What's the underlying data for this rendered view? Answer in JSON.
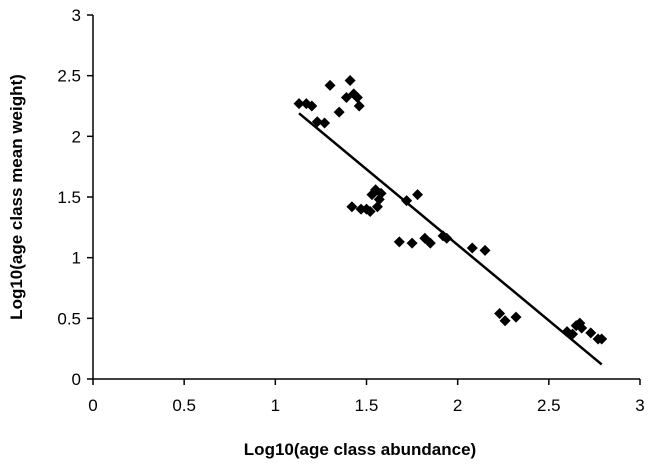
{
  "chart_data": {
    "type": "scatter",
    "xlabel": "Log10(age class abundance)",
    "ylabel": "Log10(age class mean weight)",
    "xlim": [
      0,
      3
    ],
    "ylim": [
      0,
      3
    ],
    "x_ticks": [
      "0",
      "0.5",
      "1",
      "1.5",
      "2",
      "2.5",
      "3"
    ],
    "y_ticks": [
      "0",
      "0.5",
      "1",
      "1.5",
      "2",
      "2.5",
      "3"
    ],
    "grid": false,
    "legend": "none",
    "marker": "diamond",
    "marker_color": "#000000",
    "series": [
      {
        "points": [
          [
            1.13,
            2.27
          ],
          [
            1.17,
            2.27
          ],
          [
            1.2,
            2.25
          ],
          [
            1.23,
            2.12
          ],
          [
            1.27,
            2.11
          ],
          [
            1.3,
            2.42
          ],
          [
            1.35,
            2.2
          ],
          [
            1.39,
            2.32
          ],
          [
            1.41,
            2.46
          ],
          [
            1.43,
            2.35
          ],
          [
            1.45,
            2.32
          ],
          [
            1.46,
            2.25
          ],
          [
            1.42,
            1.42
          ],
          [
            1.47,
            1.4
          ],
          [
            1.5,
            1.4
          ],
          [
            1.52,
            1.38
          ],
          [
            1.53,
            1.52
          ],
          [
            1.55,
            1.56
          ],
          [
            1.56,
            1.42
          ],
          [
            1.57,
            1.48
          ],
          [
            1.58,
            1.53
          ],
          [
            1.72,
            1.47
          ],
          [
            1.78,
            1.52
          ],
          [
            1.68,
            1.13
          ],
          [
            1.75,
            1.12
          ],
          [
            1.82,
            1.16
          ],
          [
            1.85,
            1.12
          ],
          [
            1.92,
            1.18
          ],
          [
            1.94,
            1.16
          ],
          [
            2.08,
            1.08
          ],
          [
            2.15,
            1.06
          ],
          [
            2.23,
            0.54
          ],
          [
            2.26,
            0.48
          ],
          [
            2.32,
            0.51
          ],
          [
            2.6,
            0.39
          ],
          [
            2.63,
            0.37
          ],
          [
            2.65,
            0.44
          ],
          [
            2.67,
            0.46
          ],
          [
            2.68,
            0.42
          ],
          [
            2.73,
            0.38
          ],
          [
            2.77,
            0.33
          ],
          [
            2.79,
            0.33
          ]
        ]
      }
    ],
    "trendline": {
      "x": [
        1.13,
        2.79
      ],
      "y": [
        2.19,
        0.12
      ]
    }
  }
}
